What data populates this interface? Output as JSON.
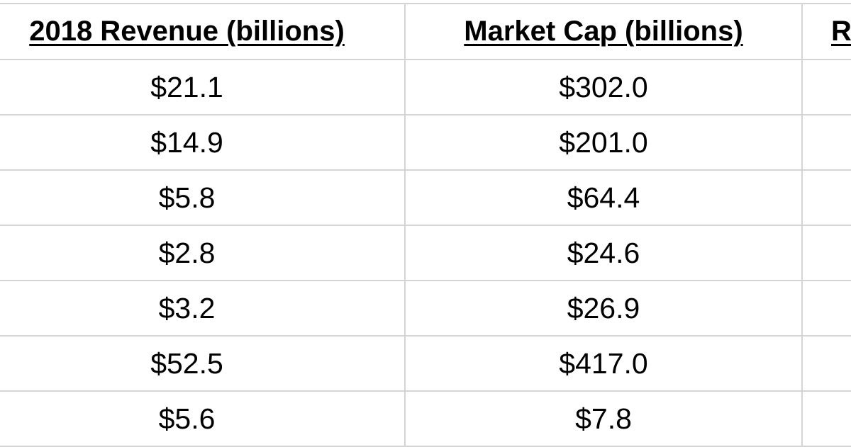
{
  "table": {
    "headers": [
      "2018 Revenue (billions)",
      "Market Cap (billions)",
      "R"
    ],
    "rows": [
      [
        "$21.1",
        "$302.0",
        ""
      ],
      [
        "$14.9",
        "$201.0",
        ""
      ],
      [
        "$5.8",
        "$64.4",
        ""
      ],
      [
        "$2.8",
        "$24.6",
        ""
      ],
      [
        "$3.2",
        "$26.9",
        ""
      ],
      [
        "$52.5",
        "$417.0",
        ""
      ],
      [
        "$5.6",
        "$7.8",
        ""
      ]
    ]
  },
  "colors": {
    "grid_line": "#d4d4d4",
    "text": "#000000",
    "background": "#ffffff"
  }
}
